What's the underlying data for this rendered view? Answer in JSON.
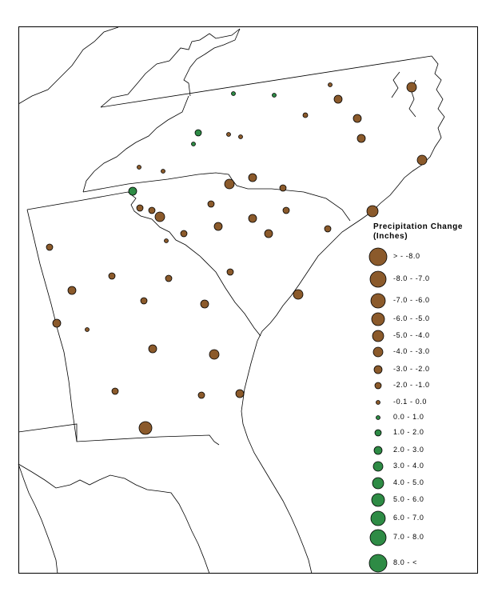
{
  "legend": {
    "title_line1": "Precipitation Change",
    "title_line2": "(Inches)",
    "classes": [
      {
        "label": "> - -8.0",
        "color": "#8b5a2b"
      },
      {
        "label": "-8.0 - -7.0",
        "color": "#8b5a2b"
      },
      {
        "label": "-7.0 - -6.0",
        "color": "#8b5a2b"
      },
      {
        "label": "-6.0 - -5.0",
        "color": "#8b5a2b"
      },
      {
        "label": "-5.0 - -4.0",
        "color": "#8b5a2b"
      },
      {
        "label": "-4.0 - -3.0",
        "color": "#8b5a2b"
      },
      {
        "label": "-3.0 - -2.0",
        "color": "#8b5a2b"
      },
      {
        "label": "-2.0 - -1.0",
        "color": "#8b5a2b"
      },
      {
        "label": "-0.1 - 0.0",
        "color": "#8b5a2b"
      },
      {
        "label": "0.0 - 1.0",
        "color": "#2e8b45"
      },
      {
        "label": "1.0 - 2.0",
        "color": "#2e8b45"
      },
      {
        "label": "2.0 - 3.0",
        "color": "#2e8b45"
      },
      {
        "label": "3.0 - 4.0",
        "color": "#2e8b45"
      },
      {
        "label": "4.0 - 5.0",
        "color": "#2e8b45"
      },
      {
        "label": "5.0 - 6.0",
        "color": "#2e8b45"
      },
      {
        "label": "6.0 - 7.0",
        "color": "#2e8b45"
      },
      {
        "label": "7.0 - 8.0",
        "color": "#2e8b45"
      },
      {
        "label": "8.0 - <",
        "color": "#2e8b45"
      }
    ]
  },
  "colors": {
    "decrease": "#8b5a2b",
    "increase": "#2e8b45",
    "outline": "#000000",
    "boundary": "#000000"
  }
}
